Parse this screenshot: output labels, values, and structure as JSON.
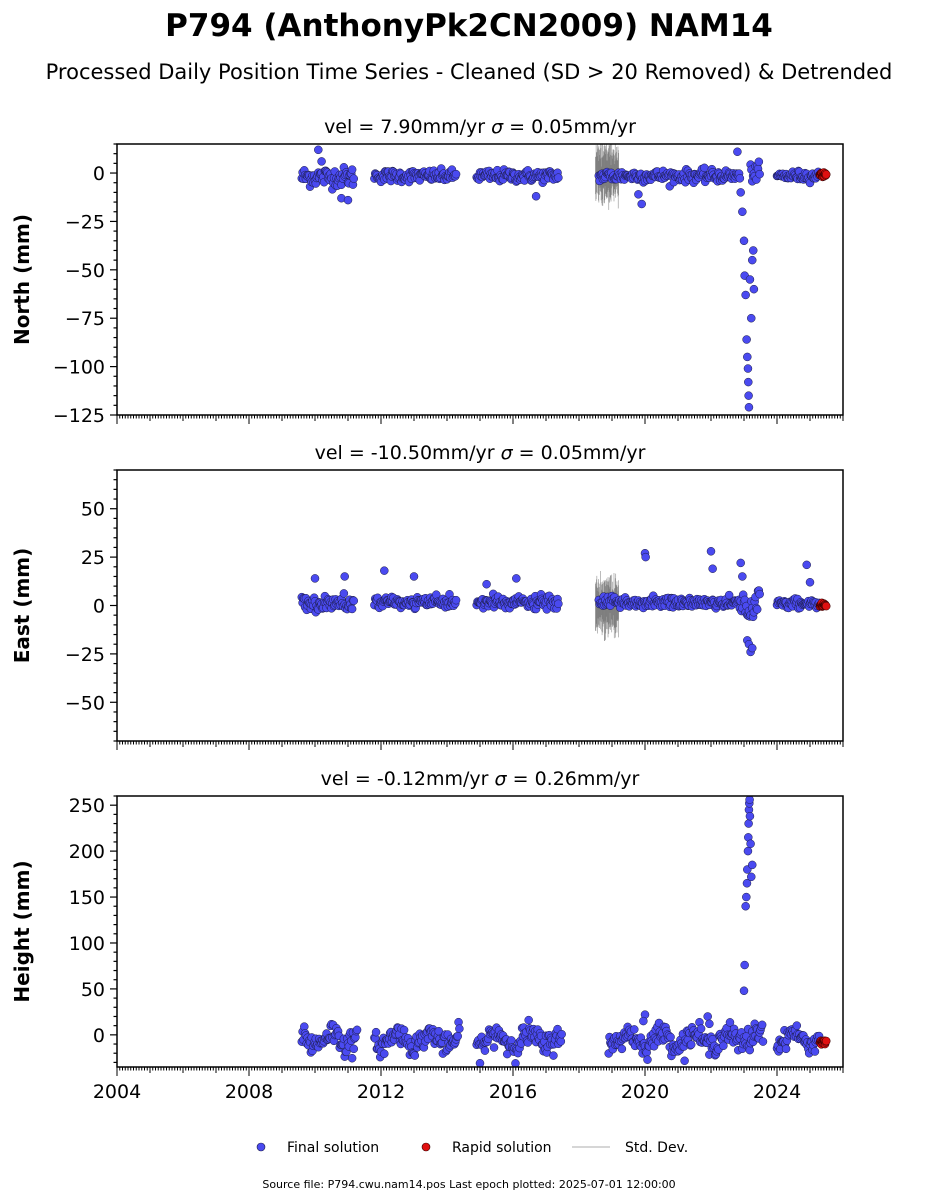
{
  "title": "P794 (AnthonyPk2CN2009) NAM14",
  "subtitle": "Processed Daily Position Time Series - Cleaned (SD > 20 Removed) & Detrended",
  "legend": {
    "final": "Final solution",
    "rapid": "Rapid solution",
    "std": "Std. Dev."
  },
  "footer": "Source file: P794.cwu.nam14.pos  Last epoch plotted: 2025-07-01 12:00:00",
  "colors": {
    "final": "#4a4af0",
    "rapid": "#e01010",
    "std": "#b0b0b0",
    "edge": "#1a1a40"
  },
  "chart_data": [
    {
      "type": "scatter",
      "component": "north",
      "title_prefix": "vel = 7.90mm/yr",
      "title_sigma": " = 0.05mm/yr",
      "ylabel": "North (mm)",
      "xlim": [
        2004.0,
        2026.0
      ],
      "ylim": [
        -125,
        15
      ],
      "yticks": [
        0,
        -25,
        -50,
        -75,
        -100,
        -125
      ],
      "ytick_labels": [
        "0",
        "−25",
        "−50",
        "−75",
        "−100",
        "−125"
      ],
      "segments": [
        {
          "start": 2009.6,
          "end": 2011.2,
          "mean": -2,
          "noise": 3.5
        },
        {
          "start": 2011.8,
          "end": 2014.3,
          "mean": -1.5,
          "noise": 2.2
        },
        {
          "start": 2014.9,
          "end": 2017.4,
          "mean": -1.5,
          "noise": 2.2
        },
        {
          "start": 2018.6,
          "end": 2022.9,
          "mean": -1.5,
          "noise": 2.2
        },
        {
          "start": 2023.2,
          "end": 2023.5,
          "mean": 0,
          "noise": 3
        },
        {
          "start": 2024.0,
          "end": 2025.3,
          "mean": -1.5,
          "noise": 1.8
        }
      ],
      "outliers": [
        [
          2010.1,
          12
        ],
        [
          2010.2,
          6
        ],
        [
          2010.8,
          -13
        ],
        [
          2011.0,
          -14
        ],
        [
          2016.7,
          -12
        ],
        [
          2019.8,
          -11
        ],
        [
          2019.9,
          -16
        ],
        [
          2022.8,
          11
        ],
        [
          2022.9,
          -10
        ],
        [
          2022.95,
          -20
        ],
        [
          2023.0,
          -35
        ],
        [
          2023.02,
          -53
        ],
        [
          2023.05,
          -63
        ],
        [
          2023.08,
          -86
        ],
        [
          2023.1,
          -95
        ],
        [
          2023.12,
          -101
        ],
        [
          2023.13,
          -108
        ],
        [
          2023.14,
          -115
        ],
        [
          2023.15,
          -121
        ],
        [
          2023.18,
          -55
        ],
        [
          2023.22,
          -75
        ],
        [
          2023.25,
          -45
        ],
        [
          2023.28,
          -40
        ],
        [
          2023.3,
          -60
        ]
      ],
      "rapid": {
        "start": 2025.3,
        "end": 2025.5,
        "mean": -0.5,
        "noise": 1.0
      },
      "std_band": {
        "start": 2018.5,
        "end": 2019.2,
        "half_height": 12
      },
      "std_typical": 1.5
    },
    {
      "type": "scatter",
      "component": "east",
      "title_prefix": "vel = -10.50mm/yr",
      "title_sigma": " = 0.05mm/yr",
      "ylabel": "East (mm)",
      "xlim": [
        2004.0,
        2026.0
      ],
      "ylim": [
        -70,
        70
      ],
      "yticks": [
        50,
        25,
        0,
        -25,
        -50
      ],
      "ytick_labels": [
        "50",
        "25",
        "0",
        "−25",
        "−50"
      ],
      "segments": [
        {
          "start": 2009.6,
          "end": 2011.2,
          "mean": 1,
          "noise": 3
        },
        {
          "start": 2011.8,
          "end": 2014.3,
          "mean": 1.5,
          "noise": 2.2
        },
        {
          "start": 2014.9,
          "end": 2017.4,
          "mean": 1.5,
          "noise": 2.4
        },
        {
          "start": 2018.6,
          "end": 2022.9,
          "mean": 1.5,
          "noise": 2.0
        },
        {
          "start": 2022.9,
          "end": 2023.5,
          "mean": 0,
          "noise": 6
        },
        {
          "start": 2024.0,
          "end": 2025.3,
          "mean": 1,
          "noise": 1.8
        }
      ],
      "outliers": [
        [
          2010.0,
          14
        ],
        [
          2010.9,
          15
        ],
        [
          2012.1,
          18
        ],
        [
          2013.0,
          15
        ],
        [
          2015.2,
          11
        ],
        [
          2016.1,
          14
        ],
        [
          2020.0,
          27
        ],
        [
          2020.02,
          25
        ],
        [
          2022.0,
          28
        ],
        [
          2022.05,
          19
        ],
        [
          2022.9,
          22
        ],
        [
          2022.95,
          15
        ],
        [
          2023.1,
          -18
        ],
        [
          2023.15,
          -20
        ],
        [
          2023.2,
          -24
        ],
        [
          2023.25,
          -22
        ],
        [
          2024.9,
          21
        ],
        [
          2025.0,
          12
        ]
      ],
      "rapid": {
        "start": 2025.3,
        "end": 2025.5,
        "mean": 0,
        "noise": 1.0
      },
      "std_band": {
        "start": 2018.5,
        "end": 2019.2,
        "half_height": 12
      },
      "std_typical": 1.5
    },
    {
      "type": "scatter",
      "component": "height",
      "title_prefix": "vel = -0.12mm/yr",
      "title_sigma": " = 0.26mm/yr",
      "ylabel": "Height (mm)",
      "xlim": [
        2004.0,
        2026.0
      ],
      "ylim": [
        -35,
        260
      ],
      "yticks": [
        250,
        200,
        150,
        100,
        50,
        0
      ],
      "ytick_labels": [
        "250",
        "200",
        "150",
        "100",
        "50",
        "0"
      ],
      "xticks": [
        2004,
        2008,
        2012,
        2016,
        2020,
        2024
      ],
      "xtick_labels": [
        "2004",
        "2008",
        "2012",
        "2016",
        "2020",
        "2024"
      ],
      "segments": [
        {
          "start": 2009.6,
          "end": 2011.3,
          "mean": -4,
          "noise": 9
        },
        {
          "start": 2011.8,
          "end": 2014.4,
          "mean": -5,
          "noise": 8
        },
        {
          "start": 2014.9,
          "end": 2017.5,
          "mean": -5,
          "noise": 9
        },
        {
          "start": 2018.9,
          "end": 2022.9,
          "mean": -5,
          "noise": 8
        },
        {
          "start": 2022.9,
          "end": 2023.6,
          "mean": -2,
          "noise": 10
        },
        {
          "start": 2024.0,
          "end": 2025.3,
          "mean": -4,
          "noise": 6
        }
      ],
      "outliers": [
        [
          2023.0,
          48
        ],
        [
          2023.02,
          76
        ],
        [
          2023.05,
          140
        ],
        [
          2023.07,
          150
        ],
        [
          2023.09,
          165
        ],
        [
          2023.1,
          180
        ],
        [
          2023.12,
          200
        ],
        [
          2023.13,
          215
        ],
        [
          2023.14,
          230
        ],
        [
          2023.15,
          245
        ],
        [
          2023.16,
          252
        ],
        [
          2023.17,
          256
        ],
        [
          2023.18,
          238
        ],
        [
          2023.2,
          208
        ],
        [
          2023.22,
          172
        ],
        [
          2023.25,
          185
        ],
        [
          2021.9,
          20
        ],
        [
          2021.95,
          12
        ],
        [
          2020.0,
          22
        ],
        [
          2019.95,
          15
        ]
      ],
      "rapid": {
        "start": 2025.3,
        "end": 2025.5,
        "mean": -8,
        "noise": 2.5
      },
      "std_band": null,
      "std_typical": 3.5
    }
  ]
}
